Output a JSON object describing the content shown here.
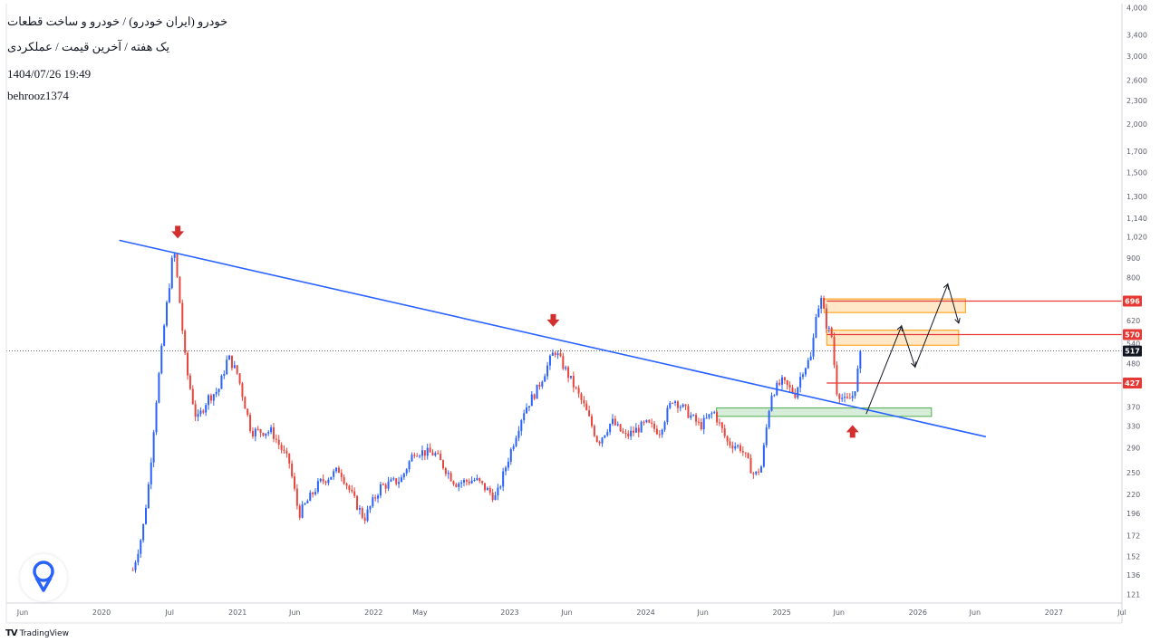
{
  "header": {
    "title_line": "خودرو (ایران خودرو) / خودرو و ساخت قطعات",
    "subtitle_line": "یک هفته / آخرین قیمت / عملکردی",
    "timestamp": "1404/07/26 19:49",
    "author": "behrooz1374"
  },
  "footer": {
    "brand": "TradingView",
    "logo": "TV"
  },
  "colors": {
    "up": "#2962ff",
    "down": "#e8453c",
    "trendline": "#2962ff",
    "level": "#e53935",
    "orange_zone": "#ff9800",
    "green_zone": "#4caf50",
    "marker": "#d32f2f",
    "axis_text": "#5d606b"
  },
  "chart_data": {
    "type": "candlestick",
    "y_scale": "log",
    "ylim": [
      115,
      4100
    ],
    "y_ticks": [
      {
        "value": 4000,
        "label": "4,000"
      },
      {
        "value": 3400,
        "label": "3,400"
      },
      {
        "value": 3000,
        "label": "3,000"
      },
      {
        "value": 2600,
        "label": "2,600"
      },
      {
        "value": 2300,
        "label": "2,300"
      },
      {
        "value": 2000,
        "label": "2,000"
      },
      {
        "value": 1700,
        "label": "1,700"
      },
      {
        "value": 1500,
        "label": "1,500"
      },
      {
        "value": 1300,
        "label": "1,300"
      },
      {
        "value": 1140,
        "label": "1,140"
      },
      {
        "value": 1020,
        "label": "1,020"
      },
      {
        "value": 900,
        "label": "900"
      },
      {
        "value": 800,
        "label": "800"
      },
      {
        "value": 620,
        "label": "620"
      },
      {
        "value": 540,
        "label": "540"
      },
      {
        "value": 480,
        "label": "480"
      },
      {
        "value": 370,
        "label": "370"
      },
      {
        "value": 330,
        "label": "330"
      },
      {
        "value": 290,
        "label": "290"
      },
      {
        "value": 250,
        "label": "250"
      },
      {
        "value": 220,
        "label": "220"
      },
      {
        "value": 196,
        "label": "196"
      },
      {
        "value": 172,
        "label": "172"
      },
      {
        "value": 152,
        "label": "152"
      },
      {
        "value": 136,
        "label": "136"
      },
      {
        "value": 121,
        "label": "121"
      }
    ],
    "x_range": [
      2019.3,
      2027.5
    ],
    "x_ticks": [
      {
        "t": 2019.42,
        "label": "Jun"
      },
      {
        "t": 2020.0,
        "label": "2020"
      },
      {
        "t": 2020.5,
        "label": "Jul"
      },
      {
        "t": 2021.0,
        "label": "2021"
      },
      {
        "t": 2021.42,
        "label": "Jun"
      },
      {
        "t": 2022.0,
        "label": "2022"
      },
      {
        "t": 2022.34,
        "label": "May"
      },
      {
        "t": 2023.0,
        "label": "2023"
      },
      {
        "t": 2023.42,
        "label": "Jun"
      },
      {
        "t": 2024.0,
        "label": "2024"
      },
      {
        "t": 2024.42,
        "label": "Jun"
      },
      {
        "t": 2025.0,
        "label": "2025"
      },
      {
        "t": 2025.42,
        "label": "Jun"
      },
      {
        "t": 2026.0,
        "label": "2026"
      },
      {
        "t": 2026.42,
        "label": "Jun"
      },
      {
        "t": 2027.0,
        "label": "2027"
      },
      {
        "t": 2027.5,
        "label": "Jul"
      }
    ],
    "price_path": [
      [
        2020.23,
        140
      ],
      [
        2020.3,
        175
      ],
      [
        2020.35,
        240
      ],
      [
        2020.4,
        380
      ],
      [
        2020.46,
        600
      ],
      [
        2020.5,
        780
      ],
      [
        2020.53,
        960
      ],
      [
        2020.57,
        720
      ],
      [
        2020.62,
        470
      ],
      [
        2020.7,
        340
      ],
      [
        2020.78,
        390
      ],
      [
        2020.86,
        410
      ],
      [
        2020.93,
        500
      ],
      [
        2021.0,
        450
      ],
      [
        2021.1,
        320
      ],
      [
        2021.25,
        320
      ],
      [
        2021.38,
        265
      ],
      [
        2021.45,
        195
      ],
      [
        2021.6,
        235
      ],
      [
        2021.75,
        255
      ],
      [
        2021.85,
        215
      ],
      [
        2021.93,
        190
      ],
      [
        2022.05,
        230
      ],
      [
        2022.2,
        240
      ],
      [
        2022.3,
        285
      ],
      [
        2022.45,
        280
      ],
      [
        2022.6,
        235
      ],
      [
        2022.75,
        240
      ],
      [
        2022.9,
        215
      ],
      [
        2023.0,
        280
      ],
      [
        2023.1,
        360
      ],
      [
        2023.2,
        410
      ],
      [
        2023.33,
        520
      ],
      [
        2023.42,
        455
      ],
      [
        2023.55,
        370
      ],
      [
        2023.65,
        300
      ],
      [
        2023.75,
        340
      ],
      [
        2023.85,
        310
      ],
      [
        2024.0,
        335
      ],
      [
        2024.1,
        320
      ],
      [
        2024.2,
        390
      ],
      [
        2024.3,
        360
      ],
      [
        2024.4,
        330
      ],
      [
        2024.5,
        360
      ],
      [
        2024.6,
        300
      ],
      [
        2024.7,
        290
      ],
      [
        2024.8,
        245
      ],
      [
        2024.85,
        260
      ],
      [
        2024.92,
        400
      ],
      [
        2025.0,
        430
      ],
      [
        2025.1,
        400
      ],
      [
        2025.15,
        460
      ],
      [
        2025.22,
        500
      ],
      [
        2025.25,
        650
      ],
      [
        2025.29,
        700
      ],
      [
        2025.33,
        600
      ],
      [
        2025.37,
        560
      ],
      [
        2025.4,
        410
      ],
      [
        2025.47,
        380
      ],
      [
        2025.53,
        400
      ],
      [
        2025.58,
        510
      ]
    ],
    "last_price": {
      "value": 517,
      "label": "517"
    },
    "levels": [
      {
        "value": 696,
        "label": "696"
      },
      {
        "value": 570,
        "label": "570"
      },
      {
        "value": 427,
        "label": "427"
      }
    ],
    "trendline": {
      "start": [
        2020.13,
        1000
      ],
      "end": [
        2026.5,
        310
      ]
    },
    "zones": [
      {
        "type": "resistance",
        "t0": 2025.31,
        "t1": 2026.35,
        "v0": 650,
        "v1": 705
      },
      {
        "type": "resistance",
        "t0": 2025.33,
        "t1": 2026.3,
        "v0": 535,
        "v1": 585
      },
      {
        "type": "support",
        "t0": 2024.52,
        "t1": 2026.1,
        "v0": 350,
        "v1": 368
      }
    ],
    "projection": [
      [
        2025.62,
        355
      ],
      [
        2025.88,
        600
      ],
      [
        2025.98,
        470
      ],
      [
        2026.22,
        770
      ],
      [
        2026.3,
        610
      ]
    ],
    "markers": [
      {
        "direction": "down",
        "t": 2020.56,
        "v": 1050
      },
      {
        "direction": "down",
        "t": 2023.32,
        "v": 620
      },
      {
        "direction": "up",
        "t": 2025.52,
        "v": 320
      }
    ]
  }
}
